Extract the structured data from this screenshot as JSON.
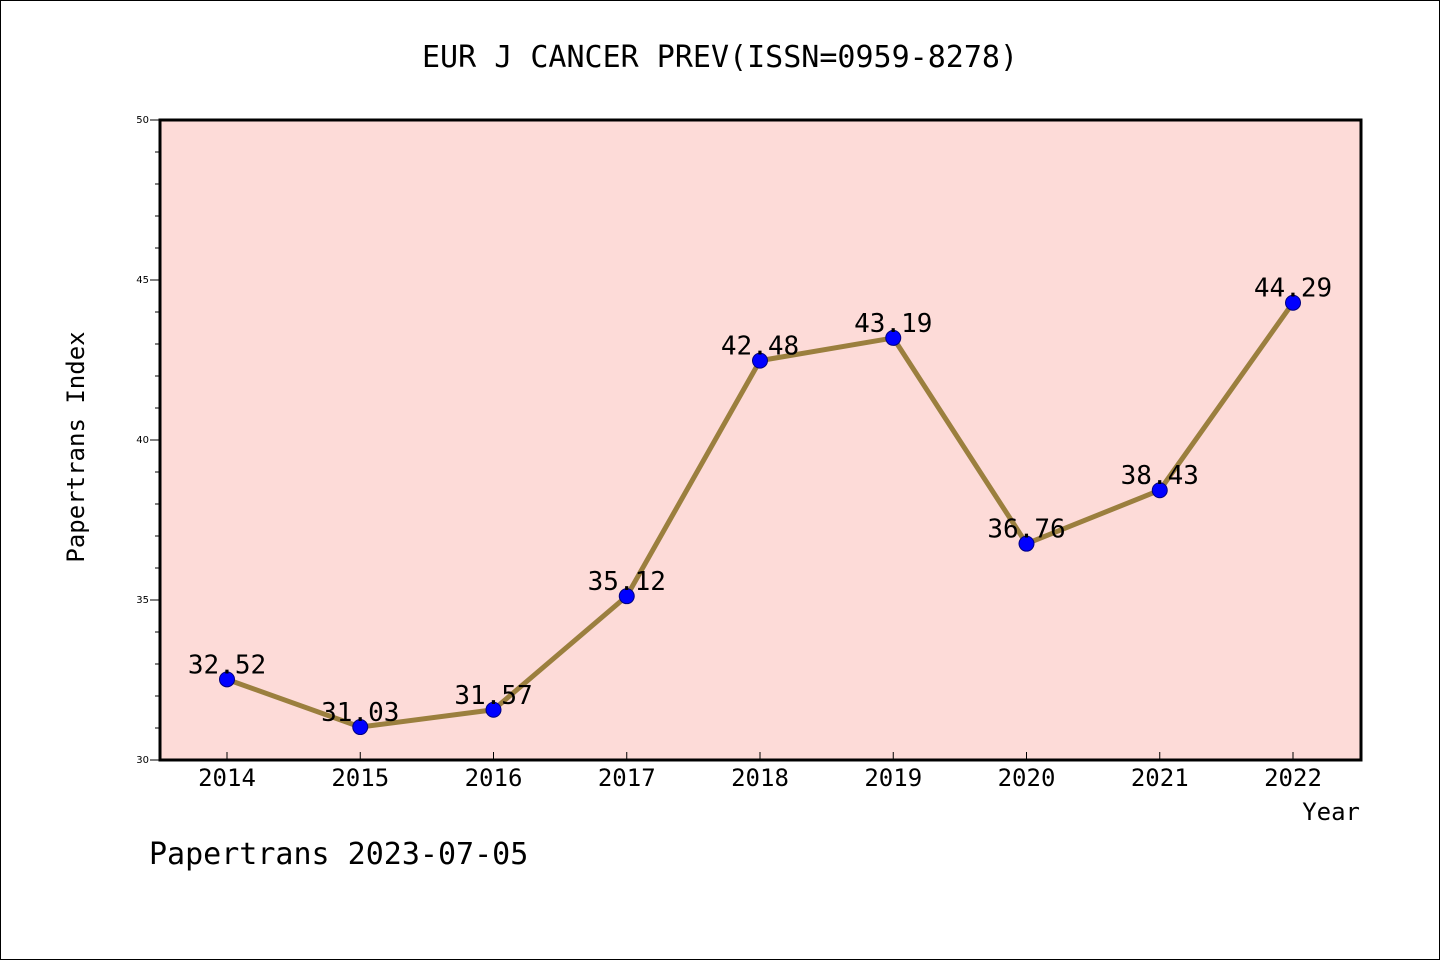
{
  "chart_data": {
    "type": "line",
    "title": "EUR J CANCER PREV(ISSN=0959-8278)",
    "xlabel": "Year",
    "ylabel": "Papertrans Index",
    "categories": [
      "2014",
      "2015",
      "2016",
      "2017",
      "2018",
      "2019",
      "2020",
      "2021",
      "2022"
    ],
    "values": [
      32.52,
      31.03,
      31.57,
      35.12,
      42.48,
      43.19,
      36.76,
      38.43,
      44.29
    ],
    "data_labels": [
      "32.52",
      "31.03",
      "31.57",
      "35.12",
      "42.48",
      "43.19",
      "36.76",
      "38.43",
      "44.29"
    ],
    "ylim": [
      30,
      50
    ],
    "yticks": [
      "30",
      "35",
      "40",
      "45",
      "50"
    ],
    "grid": false,
    "colors": {
      "plot_background": "#fddbd8",
      "line": "#9b7f3e",
      "marker": "#0000ff",
      "marker_edge": "#000080"
    }
  },
  "footer": {
    "text": "Papertrans 2023-07-05"
  }
}
